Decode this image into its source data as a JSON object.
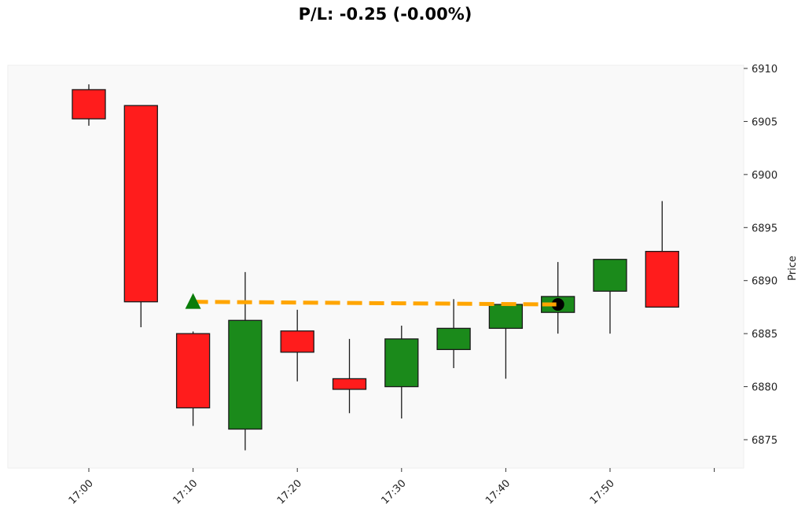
{
  "title": "P/L: -0.25 (-0.00%)",
  "colors": {
    "up": "#1b8a1b",
    "down": "#ff1c1c",
    "edge": "#1a1a1a",
    "background": "#f9f9f9",
    "trade_line": "#ffa500",
    "entry_marker": "#0a7d0a",
    "exit_marker": "#000000"
  },
  "chart_data": {
    "type": "candlestick",
    "title": "P/L: -0.25 (-0.00%)",
    "xlabel": "",
    "ylabel": "Price",
    "ylim": [
      6872.3,
      6910.3
    ],
    "y_ticks": [
      6875,
      6880,
      6885,
      6890,
      6895,
      6900,
      6905,
      6910
    ],
    "x_ticks": [
      "17:00",
      "17:10",
      "17:20",
      "17:30",
      "17:40",
      "17:50",
      ""
    ],
    "y_axis_position": "right",
    "grid": false,
    "candles": [
      {
        "time": "17:00",
        "open": 6908.0,
        "high": 6908.5,
        "low": 6904.6,
        "close": 6905.25
      },
      {
        "time": "17:05",
        "open": 6906.5,
        "high": 6906.5,
        "low": 6885.6,
        "close": 6888.0
      },
      {
        "time": "17:10",
        "open": 6885.0,
        "high": 6885.2,
        "low": 6876.3,
        "close": 6878.0
      },
      {
        "time": "17:15",
        "open": 6876.0,
        "high": 6890.8,
        "low": 6874.0,
        "close": 6886.25
      },
      {
        "time": "17:20",
        "open": 6885.25,
        "high": 6887.25,
        "low": 6880.5,
        "close": 6883.25
      },
      {
        "time": "17:25",
        "open": 6880.75,
        "high": 6884.5,
        "low": 6877.5,
        "close": 6879.75
      },
      {
        "time": "17:30",
        "open": 6880.0,
        "high": 6885.75,
        "low": 6877.0,
        "close": 6884.5
      },
      {
        "time": "17:35",
        "open": 6883.5,
        "high": 6888.25,
        "low": 6881.75,
        "close": 6885.5
      },
      {
        "time": "17:40",
        "open": 6885.5,
        "high": 6887.75,
        "low": 6880.75,
        "close": 6887.75
      },
      {
        "time": "17:45",
        "open": 6887.0,
        "high": 6891.75,
        "low": 6885.0,
        "close": 6888.5
      },
      {
        "time": "17:50",
        "open": 6889.0,
        "high": 6892.0,
        "low": 6885.0,
        "close": 6892.0
      },
      {
        "time": "17:55",
        "open": 6892.75,
        "high": 6897.5,
        "low": 6887.5,
        "close": 6887.5
      }
    ],
    "trade": {
      "entry": {
        "time": "17:10",
        "price": 6888.0,
        "marker": "triangle-up",
        "color": "#0a7d0a"
      },
      "exit": {
        "time": "17:45",
        "price": 6887.75,
        "marker": "circle",
        "color": "#000000"
      },
      "line_style": "dashed",
      "line_color": "#ffa500",
      "pnl": -0.25,
      "pnl_pct": "-0.00%"
    }
  }
}
